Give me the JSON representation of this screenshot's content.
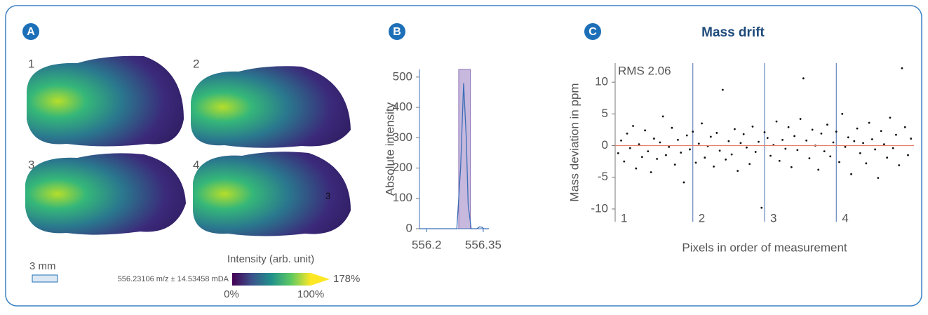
{
  "panel_a": {
    "panel_label": "A",
    "section_labels": [
      "1",
      "2",
      "3",
      "4"
    ],
    "section_mark": "3",
    "scale_bar": "3 mm",
    "colorbar_title": "Intensity (arb. unit)",
    "mass_window": "556.23106 m/z ± 14.53458 mDA",
    "colorbar_labels": [
      "0%",
      "100%",
      "178%"
    ]
  },
  "chart_data": [
    {
      "type": "line",
      "panel_label": "B",
      "y_label": "Absolute intensity",
      "x": [
        556.181,
        556.28,
        556.29,
        556.298,
        556.305,
        556.31,
        556.318,
        556.333,
        556.34,
        556.346,
        556.352,
        556.365
      ],
      "values": [
        0,
        0,
        200,
        480,
        300,
        80,
        0,
        0,
        6,
        5,
        0,
        0
      ],
      "color": "#3b6fb6",
      "highlight_band": [
        556.285,
        556.316
      ],
      "highlight_color": "#b9a6d6",
      "xlim": [
        556.181,
        556.365
      ],
      "xticks": [
        556.2,
        556.35
      ],
      "ylim": [
        0,
        525
      ],
      "yticks": [
        0,
        100,
        200,
        300,
        400,
        500
      ]
    },
    {
      "type": "scatter",
      "panel_label": "C",
      "title": "Mass drift",
      "y_label": "Mass deviation in ppm",
      "x_label": "Pixels in order of measurement",
      "annotation": "RMS 2.06",
      "color": "#111111",
      "reference_line": 0,
      "reference_color": "#e8806a",
      "segments": [
        {
          "label": "1",
          "start": 0
        },
        {
          "label": "2",
          "start": 26
        },
        {
          "label": "3",
          "start": 50
        },
        {
          "label": "4",
          "start": 74
        }
      ],
      "x": [
        1,
        2,
        3,
        4,
        5,
        6,
        7,
        8,
        9,
        10,
        11,
        12,
        13,
        14,
        15,
        16,
        17,
        18,
        19,
        20,
        21,
        22,
        23,
        24,
        25,
        26,
        27,
        28,
        29,
        30,
        31,
        32,
        33,
        34,
        35,
        36,
        37,
        38,
        39,
        40,
        41,
        42,
        43,
        44,
        45,
        46,
        47,
        48,
        49,
        50,
        51,
        52,
        53,
        54,
        55,
        56,
        57,
        58,
        59,
        60,
        61,
        62,
        63,
        64,
        65,
        66,
        67,
        68,
        69,
        70,
        71,
        72,
        73,
        74,
        75,
        76,
        77,
        78,
        79,
        80,
        81,
        82,
        83,
        84,
        85,
        86,
        87,
        88,
        89,
        90,
        91,
        92,
        93,
        94,
        95,
        96,
        97,
        98,
        99
      ],
      "values": [
        -1.2,
        0.8,
        -2.5,
        1.9,
        -0.4,
        3.1,
        -3.6,
        0.2,
        -1.8,
        2.4,
        -0.9,
        -4.2,
        1.1,
        -2.1,
        0.5,
        4.6,
        -1.5,
        -0.2,
        2.8,
        -3.0,
        0.9,
        -1.1,
        -5.8,
        1.6,
        -0.6,
        2.2,
        -2.7,
        0.3,
        3.5,
        -1.9,
        -0.1,
        1.4,
        -3.3,
        2.0,
        -0.8,
        8.8,
        -2.2,
        0.7,
        -1.4,
        2.6,
        -4.0,
        0.4,
        1.8,
        -0.3,
        -2.9,
        3.0,
        -1.0,
        0.6,
        -9.8,
        2.1,
        1.2,
        -1.6,
        0.1,
        3.8,
        -2.4,
        0.9,
        -0.5,
        2.9,
        -3.4,
        1.5,
        -0.7,
        4.2,
        10.6,
        0.8,
        -2.0,
        2.5,
        0.0,
        -3.8,
        1.9,
        -0.9,
        3.3,
        -1.7,
        0.5,
        2.2,
        -2.6,
        5.0,
        -0.2,
        1.3,
        -4.5,
        0.7,
        2.7,
        -1.2,
        0.4,
        -2.8,
        3.6,
        1.0,
        -0.6,
        -5.1,
        2.3,
        0.2,
        -1.9,
        4.4,
        -0.4,
        1.7,
        -3.1,
        12.2,
        2.9,
        -1.5,
        1.1
      ],
      "xlim": [
        0,
        100
      ],
      "ylim": [
        -12,
        13
      ],
      "yticks": [
        -10,
        -5,
        0,
        5,
        10
      ]
    }
  ]
}
